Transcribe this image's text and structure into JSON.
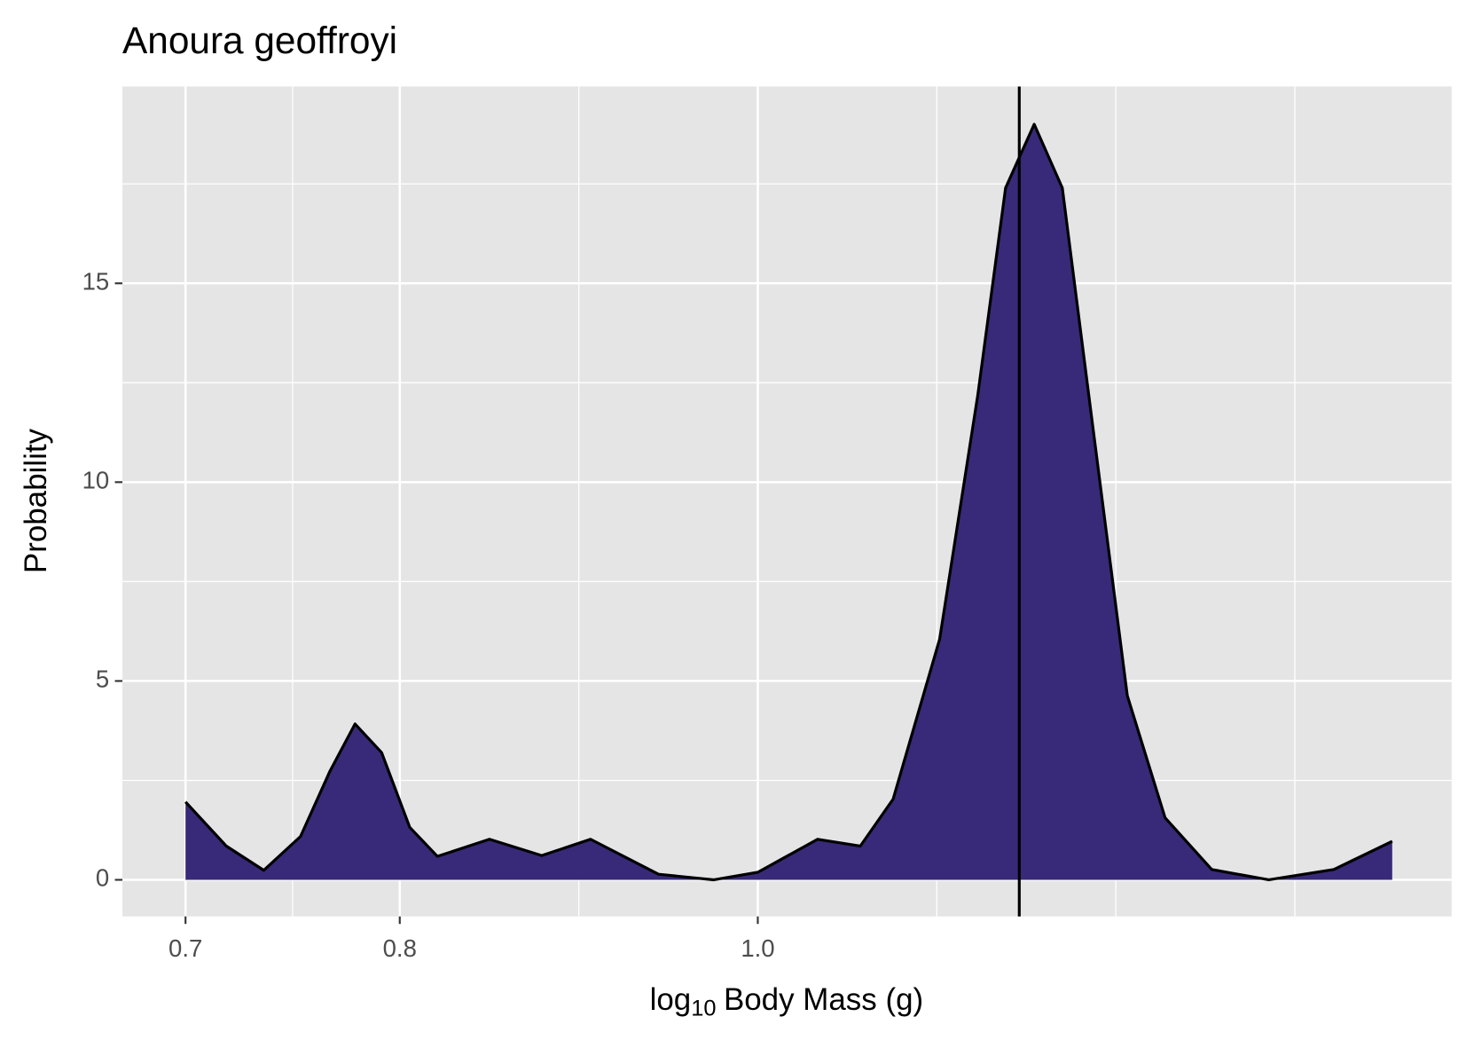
{
  "chart_data": {
    "type": "density",
    "title": "Anoura geoffroyi",
    "x_label": {
      "base": "log",
      "subscript": "10",
      "rest": "Body Mass (g)"
    },
    "y_label": "Probability",
    "x": [
      0.7,
      0.718,
      0.735,
      0.752,
      0.766,
      0.778,
      0.791,
      0.805,
      0.819,
      0.846,
      0.874,
      0.901,
      0.94,
      0.973,
      1.0,
      1.038,
      1.066,
      1.088,
      1.12,
      1.147,
      1.167,
      1.188,
      1.209,
      1.23,
      1.259,
      1.289,
      1.327,
      1.375,
      1.432,
      1.485
    ],
    "values": [
      1.96,
      0.85,
      0.24,
      1.09,
      2.74,
      3.92,
      3.2,
      1.32,
      0.59,
      1.02,
      0.61,
      1.02,
      0.14,
      0.0,
      0.19,
      1.02,
      0.85,
      2.03,
      6.05,
      12.2,
      17.4,
      19.0,
      17.4,
      11.96,
      4.63,
      1.56,
      0.26,
      0.0,
      0.26,
      0.97
    ],
    "color": "#382a78",
    "line_color": "#000000",
    "vline": 1.177,
    "xlim": [
      0.673,
      1.541
    ],
    "xlog": true,
    "xticks": [
      {
        "value": 0.7,
        "label": "0.7"
      },
      {
        "value": 0.8,
        "label": "0.8"
      },
      {
        "value": 1.0,
        "label": "1.0"
      }
    ],
    "ylim": [
      -0.92,
      19.95
    ],
    "yticks": [
      0,
      5,
      10,
      15
    ],
    "grid": true
  }
}
